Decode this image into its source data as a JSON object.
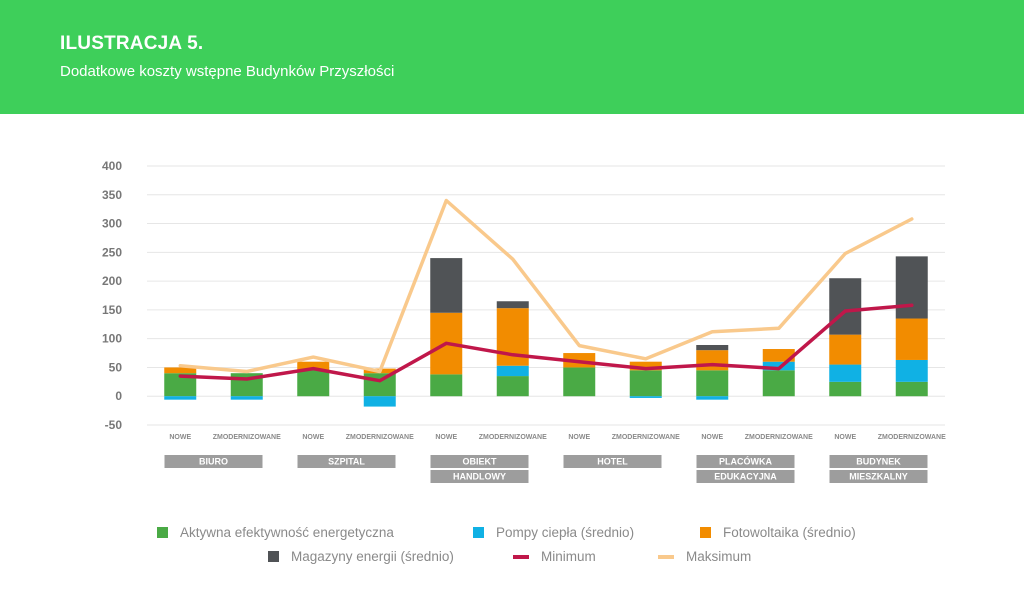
{
  "header": {
    "title": "ILUSTRACJA 5.",
    "subtitle": "Dodatkowe koszty wstępne Budynków Przyszłości"
  },
  "colors": {
    "header_bg": "#3ecf5a",
    "aktywna": "#4aaa45",
    "pompy": "#10b1e4",
    "foto": "#f28c00",
    "magazyny": "#505356",
    "minimum": "#c0174a",
    "maksimum": "#f9c98c",
    "group_label_bg": "#9d9d9d"
  },
  "chart_data": {
    "type": "bar",
    "stacked": true,
    "ylim": [
      -50,
      400
    ],
    "yticks": [
      "-50",
      "0",
      "50",
      "100",
      "150",
      "200",
      "250",
      "300",
      "350",
      "400"
    ],
    "grid": true,
    "legend_position": "bottom",
    "categories": [
      "NOWE",
      "ZMODERNIZOWANE",
      "NOWE",
      "ZMODERNIZOWANE",
      "NOWE",
      "ZMODERNIZOWANE",
      "NOWE",
      "ZMODERNIZOWANE",
      "NOWE",
      "ZMODERNIZOWANE",
      "NOWE",
      "ZMODERNIZOWANE"
    ],
    "groups": [
      {
        "lines": [
          "BIURO"
        ]
      },
      {
        "lines": [
          "SZPITAL"
        ]
      },
      {
        "lines": [
          "OBIEKT",
          "HANDLOWY"
        ]
      },
      {
        "lines": [
          "HOTEL"
        ]
      },
      {
        "lines": [
          "PLACÓWKA",
          "EDUKACYJNA"
        ]
      },
      {
        "lines": [
          "BUDYNEK",
          "MIESZKALNY"
        ]
      }
    ],
    "series": [
      {
        "name": "Aktywna efektywność energetyczna",
        "kind": "bar",
        "color_key": "aktywna",
        "values": [
          40,
          40,
          45,
          40,
          38,
          35,
          50,
          45,
          45,
          45,
          25,
          25
        ]
      },
      {
        "name": "Pompy ciepła (średnio)",
        "kind": "bar",
        "color_key": "pompy",
        "values": [
          -6,
          -6,
          0,
          -18,
          0,
          18,
          0,
          -3,
          -6,
          15,
          30,
          38
        ]
      },
      {
        "name": "Fotowoltaika (średnio)",
        "kind": "bar",
        "color_key": "foto",
        "values": [
          10,
          0,
          15,
          8,
          107,
          100,
          25,
          15,
          35,
          22,
          52,
          72
        ]
      },
      {
        "name": "Magazyny energii (średnio)",
        "kind": "bar",
        "color_key": "magazyny",
        "values": [
          0,
          0,
          0,
          0,
          95,
          12,
          0,
          0,
          9,
          0,
          98,
          108
        ]
      },
      {
        "name": "Minimum",
        "kind": "line",
        "color_key": "minimum",
        "values": [
          35,
          30,
          48,
          27,
          92,
          72,
          60,
          48,
          55,
          48,
          148,
          158
        ]
      },
      {
        "name": "Maksimum",
        "kind": "line",
        "color_key": "maksimum",
        "values": [
          53,
          43,
          68,
          43,
          340,
          238,
          88,
          65,
          112,
          118,
          248,
          308
        ]
      }
    ]
  }
}
